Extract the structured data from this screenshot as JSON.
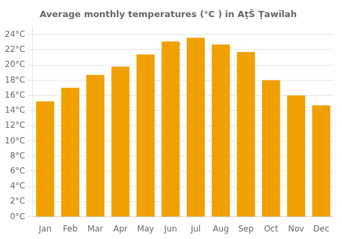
{
  "chart_data": {
    "type": "bar",
    "title": "Average monthly temperatures (°C ) in AṭŠ Ṭawīlah",
    "categories": [
      "Jan",
      "Feb",
      "Mar",
      "Apr",
      "May",
      "Jun",
      "Jul",
      "Aug",
      "Sep",
      "Oct",
      "Nov",
      "Dec"
    ],
    "values": [
      15.2,
      17.0,
      18.7,
      19.8,
      21.4,
      23.1,
      23.6,
      22.7,
      21.7,
      18.0,
      16.0,
      14.7
    ],
    "color": "#F0A000",
    "ylim": [
      0,
      25
    ],
    "yticks": [
      {
        "value": 0,
        "label": "0°C"
      },
      {
        "value": 2,
        "label": "2°C"
      },
      {
        "value": 4,
        "label": "4°C"
      },
      {
        "value": 6,
        "label": "6°C"
      },
      {
        "value": 8,
        "label": "8°C"
      },
      {
        "value": 10,
        "label": "10°C"
      },
      {
        "value": 12,
        "label": "12°C"
      },
      {
        "value": 14,
        "label": "14°C"
      },
      {
        "value": 16,
        "label": "16°C"
      },
      {
        "value": 18,
        "label": "18°C"
      },
      {
        "value": 20,
        "label": "20°C"
      },
      {
        "value": 22,
        "label": "22°C"
      },
      {
        "value": 24,
        "label": "24°C"
      }
    ],
    "grid": true
  }
}
